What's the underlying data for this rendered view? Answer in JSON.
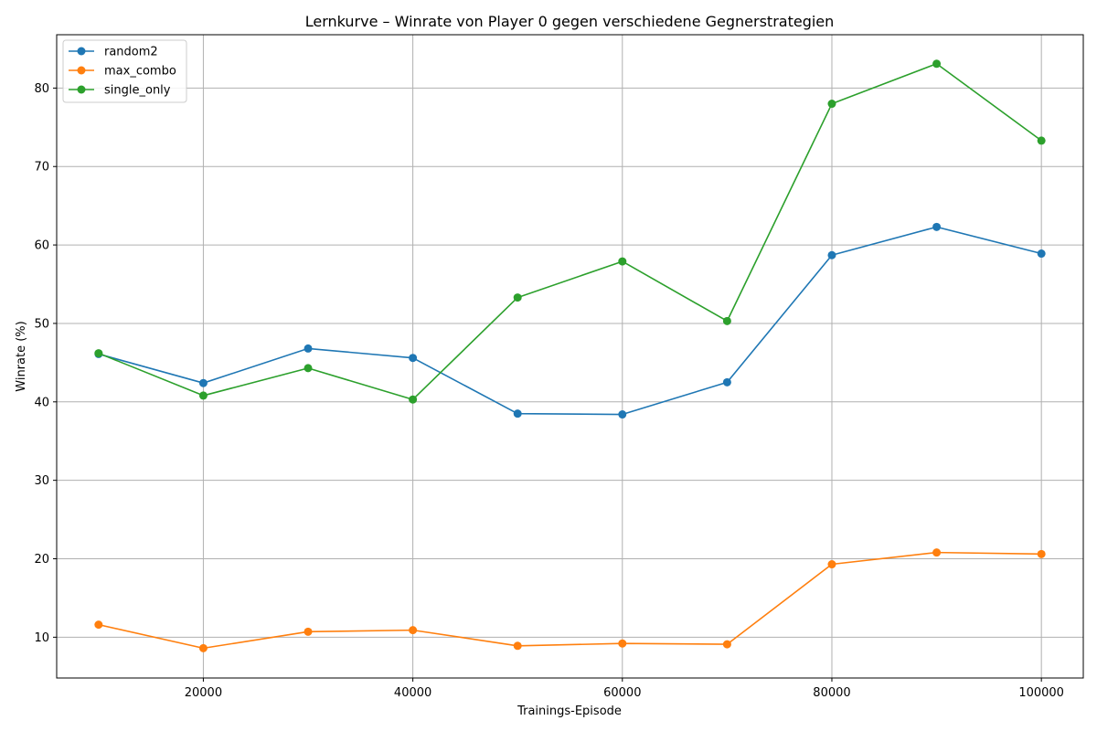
{
  "chart_data": {
    "type": "line",
    "title": "Lernkurve – Winrate von Player 0 gegen verschiedene Gegnerstrategien",
    "xlabel": "Trainings-Episode",
    "ylabel": "Winrate (%)",
    "x": [
      10000,
      20000,
      30000,
      40000,
      50000,
      60000,
      70000,
      80000,
      90000,
      100000
    ],
    "xlim": [
      6000,
      104000
    ],
    "ylim": [
      4.8,
      86.8
    ],
    "xticks": [
      20000,
      40000,
      60000,
      80000,
      100000
    ],
    "yticks": [
      10,
      20,
      30,
      40,
      50,
      60,
      70,
      80
    ],
    "grid": true,
    "legend_position": "upper-left",
    "marker": "circle",
    "series": [
      {
        "name": "random2",
        "color": "#1f77b4",
        "values": [
          46.1,
          42.4,
          46.8,
          45.6,
          38.5,
          38.4,
          42.5,
          58.7,
          62.3,
          58.9
        ]
      },
      {
        "name": "max_combo",
        "color": "#ff7f0e",
        "values": [
          11.6,
          8.6,
          10.7,
          10.9,
          8.9,
          9.2,
          9.1,
          19.3,
          20.8,
          20.6
        ]
      },
      {
        "name": "single_only",
        "color": "#2ca02c",
        "values": [
          46.2,
          40.8,
          44.3,
          40.3,
          53.3,
          57.9,
          50.3,
          78.0,
          83.1,
          73.3
        ]
      }
    ]
  }
}
